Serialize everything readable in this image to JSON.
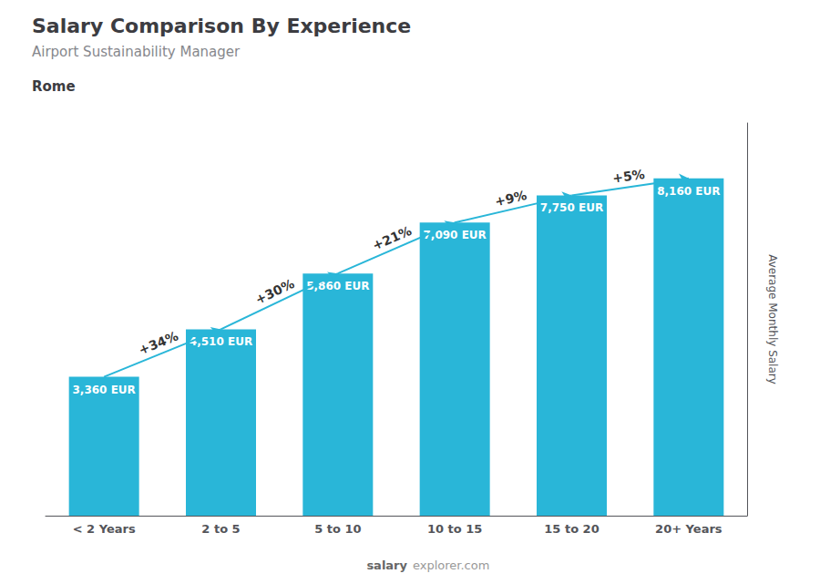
{
  "chart_data": {
    "type": "bar",
    "title": "Salary Comparison By Experience",
    "subtitle": "Airport Sustainability Manager",
    "city": "Rome",
    "categories": [
      "< 2 Years",
      "2 to 5",
      "5 to 10",
      "10 to 15",
      "15 to 20",
      "20+ Years"
    ],
    "values": [
      3360,
      4510,
      5860,
      7090,
      7750,
      8160
    ],
    "value_labels": [
      "3,360 EUR",
      "4,510 EUR",
      "5,860 EUR",
      "7,090 EUR",
      "7,750 EUR",
      "8,160 EUR"
    ],
    "data_labels": true,
    "color": "#29b6d8",
    "ylabel": "Average Monthly Salary",
    "ylim": [
      0,
      9500
    ],
    "tick_labels": "x",
    "grid": false,
    "annotations": [
      "+34%",
      "+30%",
      "+21%",
      "+9%",
      "+5%"
    ],
    "watermark": [
      "salary",
      "explorer.com"
    ]
  }
}
